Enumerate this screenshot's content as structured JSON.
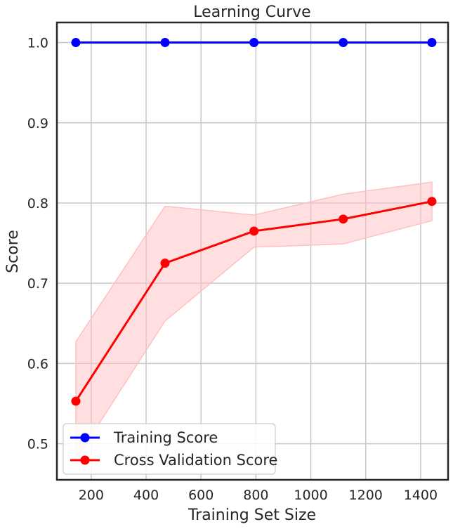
{
  "chart_data": {
    "type": "line",
    "title": "Learning Curve",
    "xlabel": "Training Set Size",
    "ylabel": "Score",
    "xlim": [
      75,
      1500
    ],
    "ylim": [
      0.455,
      1.025
    ],
    "xticks": [
      200,
      400,
      600,
      800,
      1000,
      1200,
      1400
    ],
    "yticks": [
      0.5,
      0.6,
      0.7,
      0.8,
      0.9,
      1.0
    ],
    "ytick_labels": [
      "0.5",
      "0.6",
      "0.7",
      "0.8",
      "0.9",
      "1.0"
    ],
    "grid": true,
    "legend_position": "lower-left",
    "x": [
      144,
      469,
      793,
      1118,
      1441
    ],
    "series": [
      {
        "name": "Training Score",
        "color": "#0000ff",
        "marker": "circle",
        "values": [
          1.0,
          1.0,
          1.0,
          1.0,
          1.0
        ]
      },
      {
        "name": "Cross Validation Score",
        "color": "#ff0000",
        "marker": "circle",
        "values": [
          0.553,
          0.725,
          0.765,
          0.78,
          0.802
        ],
        "band_lower": [
          0.48,
          0.653,
          0.745,
          0.749,
          0.778
        ],
        "band_upper": [
          0.627,
          0.796,
          0.785,
          0.811,
          0.826
        ],
        "band_color": "#ffc0c0"
      }
    ]
  }
}
